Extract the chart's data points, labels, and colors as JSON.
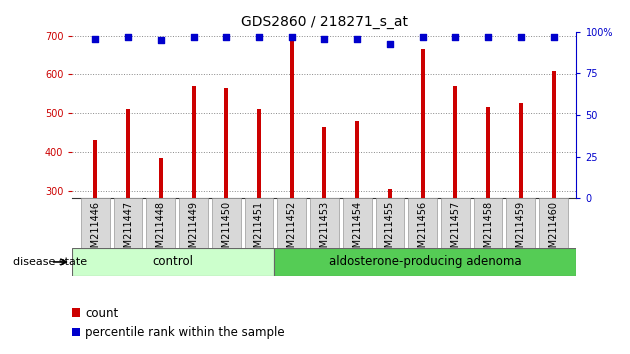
{
  "title": "GDS2860 / 218271_s_at",
  "samples": [
    "GSM211446",
    "GSM211447",
    "GSM211448",
    "GSM211449",
    "GSM211450",
    "GSM211451",
    "GSM211452",
    "GSM211453",
    "GSM211454",
    "GSM211455",
    "GSM211456",
    "GSM211457",
    "GSM211458",
    "GSM211459",
    "GSM211460"
  ],
  "counts": [
    430,
    510,
    385,
    570,
    565,
    510,
    690,
    465,
    480,
    305,
    665,
    570,
    515,
    525,
    610
  ],
  "percentiles": [
    96,
    97,
    95,
    97,
    97,
    97,
    97,
    96,
    96,
    93,
    97,
    97,
    97,
    97,
    97
  ],
  "ylim_left": [
    280,
    710
  ],
  "yticks_left": [
    300,
    400,
    500,
    600,
    700
  ],
  "ylim_right": [
    0,
    100
  ],
  "yticks_right": [
    0,
    25,
    50,
    75,
    100
  ],
  "bar_color": "#cc0000",
  "dot_color": "#0000cc",
  "n_control": 6,
  "control_label": "control",
  "adenoma_label": "aldosterone-producing adenoma",
  "disease_state_label": "disease state",
  "legend_count": "count",
  "legend_percentile": "percentile rank within the sample",
  "control_color": "#ccffcc",
  "adenoma_color": "#55cc55",
  "grid_color": "#888888",
  "title_fontsize": 10,
  "tick_fontsize": 7,
  "label_fontsize": 8
}
